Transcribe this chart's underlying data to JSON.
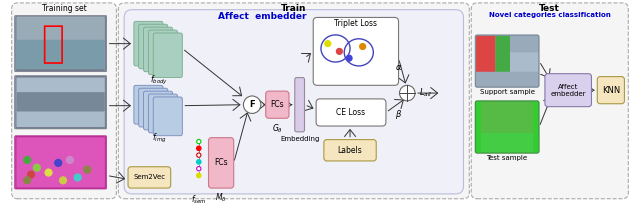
{
  "title_train": "Train",
  "title_test": "Test",
  "subtitle_train": "Affect  embedder",
  "subtitle_test": "Novel categories classification",
  "label_training_set": "Training set",
  "label_fbody": "$f_{body}$",
  "label_fimg": "$f_{img}$",
  "label_fsem": "$f_{sem}$",
  "label_sem2vec": "Sem2Vec",
  "label_F": "F",
  "label_FCs_main": "FCs",
  "label_G": "$G_{\\theta}$",
  "label_FCs_sem": "FCs",
  "label_M": "$M_{\\delta}$",
  "label_embedding": "Embedding",
  "label_triplet": "Triplet Loss",
  "label_CE": "CE Loss",
  "label_labels": "Labels",
  "label_alpha": "$\\alpha$",
  "label_beta": "$\\beta$",
  "label_Lall": "$L_{all}$",
  "label_affect_embedder": "Affect\nembedder",
  "label_KNN": "KNN",
  "label_support": "Support sample",
  "label_test_sample": "Test sample",
  "cnn_body_color": "#a8cfc0",
  "cnn_img_color": "#b8cce4",
  "sem2vec_color": "#f5e6c0",
  "FCs_color": "#f0b8c8",
  "labels_box_color": "#f5e6c0",
  "affect_embedder_color": "#d8d0ec",
  "KNN_color": "#f5e6c0",
  "subtitle_train_color": "#0000cc",
  "subtitle_test_color": "#0000cc"
}
